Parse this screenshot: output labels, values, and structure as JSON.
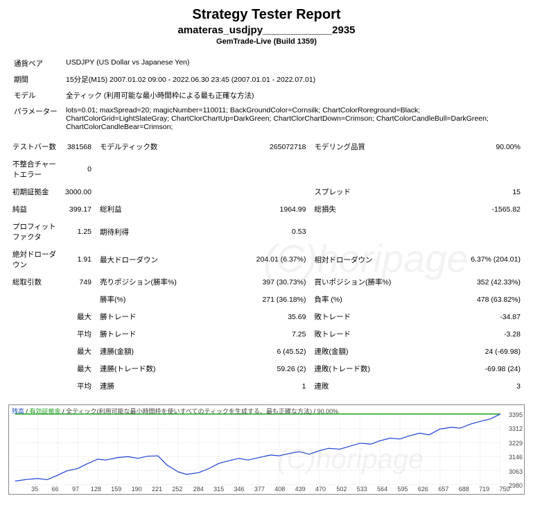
{
  "header": {
    "title": "Strategy Tester Report",
    "subtitle": "amateras_usdjpy____________2935",
    "build": "GemTrade-Live (Build 1359)"
  },
  "info": {
    "pair_label": "通貨ペア",
    "pair_value": "USDJPY (US Dollar vs Japanese Yen)",
    "period_label": "期間",
    "period_value": "15分足(M15) 2007.01.02 09:00 - 2022.06.30 23:45 (2007.01.01 - 2022.07.01)",
    "model_label": "モデル",
    "model_value": "全ティック (利用可能な最小時間枠による最も正確な方法)",
    "param_label": "パラメーター",
    "param_value": "lots=0.01; maxSpread=20; magicNumber=110011; BackGroundColor=Cornsilk; ChartColorRoreground=Black; ChartColorGrid=LightSlateGray; ChartClorChartUp=DarkGreen; ChartClorChartDown=Crimson; ChartColorCandleBull=DarkGreen; ChartColorCandleBear=Crimson;"
  },
  "stats": {
    "test_bars_label": "テストバー数",
    "test_bars": "381568",
    "model_ticks_label": "モデルティック数",
    "model_ticks": "265072718",
    "model_quality_label": "モデリング品質",
    "model_quality": "90.00%",
    "mismatch_label": "不整合チャートエラー",
    "mismatch": "0",
    "init_deposit_label": "初期証拠金",
    "init_deposit": "3000.00",
    "spread_label": "スプレッド",
    "spread": "15",
    "net_profit_label": "純益",
    "net_profit": "399.17",
    "gross_profit_label": "総利益",
    "gross_profit": "1964.99",
    "gross_loss_label": "総損失",
    "gross_loss": "-1565.82",
    "pf_label": "プロフィットファクタ",
    "pf": "1.25",
    "expected_label": "期待利得",
    "expected": "0.53",
    "abs_dd_label": "絶対ドローダウン",
    "abs_dd": "1.91",
    "max_dd_label": "最大ドローダウン",
    "max_dd": "204.01 (6.37%)",
    "rel_dd_label": "相対ドローダウン",
    "rel_dd": "6.37% (204.01)",
    "total_trades_label": "総取引数",
    "total_trades": "749",
    "sell_pos_label": "売りポジション(勝率%)",
    "sell_pos": "397 (30.73%)",
    "buy_pos_label": "買いポジション(勝率%)",
    "buy_pos": "352 (42.33%)",
    "win_rate_label": "勝率(%)",
    "win_rate": "271 (36.18%)",
    "loss_rate_label": "負率 (%)",
    "loss_rate": "478 (63.82%)",
    "largest_label": "最大",
    "avg_label": "平均",
    "win_trade_label": "勝トレード",
    "loss_trade_label": "敗トレード",
    "largest_win": "35.69",
    "largest_loss": "-34.87",
    "avg_win": "7.25",
    "avg_loss": "-3.28",
    "cons_win_amt_label": "連勝(金額)",
    "cons_loss_amt_label": "連敗(金額)",
    "cons_win_amt": "6 (45.52)",
    "cons_loss_amt": "24 (-69.98)",
    "cons_win_cnt_label": "連勝(トレード数)",
    "cons_loss_cnt_label": "連敗(トレード数)",
    "cons_win_cnt": "59.26 (2)",
    "cons_loss_cnt": "-69.98 (24)",
    "cons_win_label": "連勝",
    "cons_loss_label": "連敗",
    "avg_cons_win": "1",
    "avg_cons_loss": "3"
  },
  "chart": {
    "header_a": "残高",
    "header_b": "有効証拠金",
    "header_c": "全ティック(利用可能な最小時間枠を使いすべてのティックを生成する、最も正確な方法)",
    "header_d": "90.00%",
    "y_min": 2980,
    "y_max": 3395,
    "y_ticks": [
      2980,
      3063,
      3146,
      3229,
      3312,
      3395
    ],
    "x_ticks": [
      35,
      66,
      97,
      128,
      159,
      190,
      221,
      252,
      284,
      315,
      346,
      377,
      408,
      439,
      470,
      502,
      533,
      564,
      595,
      626,
      657,
      688,
      719,
      750
    ],
    "line_color": "#1a3fd4",
    "grid_color": "#d8d8d8",
    "quality_band_color": "#3cb43c",
    "equity_points": [
      [
        0,
        3000
      ],
      [
        20,
        3010
      ],
      [
        35,
        3015
      ],
      [
        50,
        3008
      ],
      [
        66,
        3035
      ],
      [
        80,
        3060
      ],
      [
        97,
        3075
      ],
      [
        110,
        3100
      ],
      [
        128,
        3130
      ],
      [
        140,
        3125
      ],
      [
        159,
        3140
      ],
      [
        175,
        3145
      ],
      [
        190,
        3135
      ],
      [
        205,
        3148
      ],
      [
        221,
        3150
      ],
      [
        235,
        3095
      ],
      [
        252,
        3055
      ],
      [
        265,
        3040
      ],
      [
        284,
        3050
      ],
      [
        300,
        3075
      ],
      [
        315,
        3105
      ],
      [
        330,
        3120
      ],
      [
        346,
        3135
      ],
      [
        360,
        3125
      ],
      [
        377,
        3140
      ],
      [
        395,
        3155
      ],
      [
        408,
        3150
      ],
      [
        425,
        3165
      ],
      [
        439,
        3175
      ],
      [
        455,
        3160
      ],
      [
        470,
        3180
      ],
      [
        485,
        3195
      ],
      [
        502,
        3190
      ],
      [
        520,
        3210
      ],
      [
        533,
        3225
      ],
      [
        550,
        3220
      ],
      [
        564,
        3240
      ],
      [
        580,
        3255
      ],
      [
        595,
        3250
      ],
      [
        610,
        3270
      ],
      [
        626,
        3285
      ],
      [
        640,
        3275
      ],
      [
        657,
        3310
      ],
      [
        675,
        3320
      ],
      [
        688,
        3315
      ],
      [
        705,
        3340
      ],
      [
        719,
        3355
      ],
      [
        735,
        3370
      ],
      [
        750,
        3399
      ]
    ]
  },
  "watermark": "(C)horipage"
}
